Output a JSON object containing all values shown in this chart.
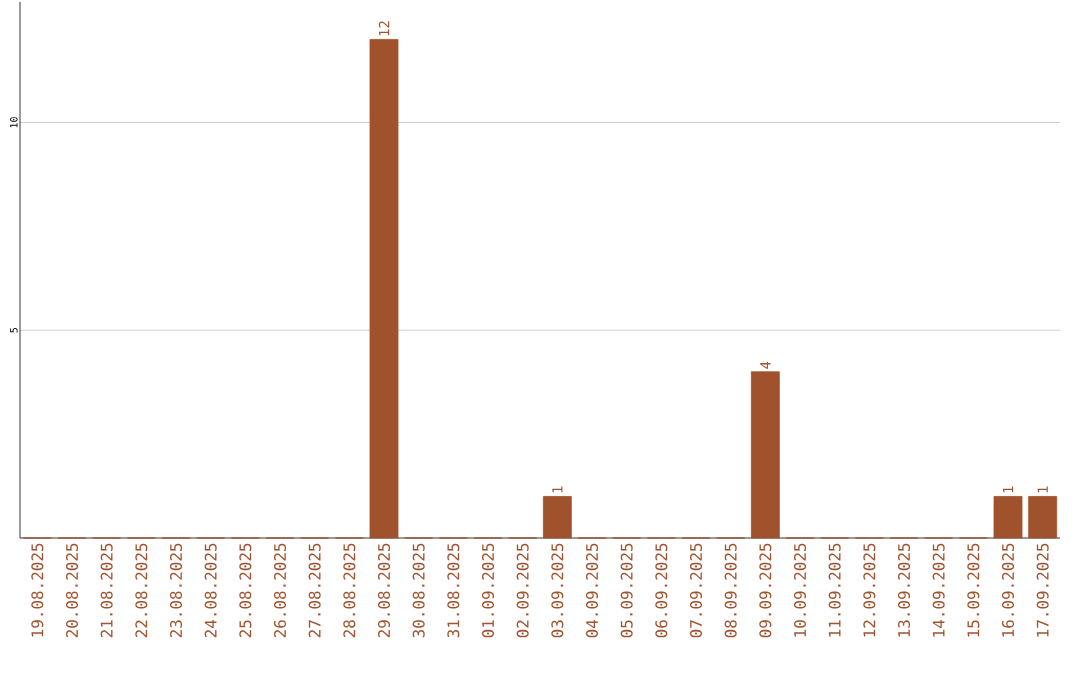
{
  "chart_data": {
    "type": "bar",
    "categories": [
      "19.08.2025",
      "20.08.2025",
      "21.08.2025",
      "22.08.2025",
      "23.08.2025",
      "24.08.2025",
      "25.08.2025",
      "26.08.2025",
      "27.08.2025",
      "28.08.2025",
      "29.08.2025",
      "30.08.2025",
      "31.08.2025",
      "01.09.2025",
      "02.09.2025",
      "03.09.2025",
      "04.09.2025",
      "05.09.2025",
      "06.09.2025",
      "07.09.2025",
      "08.09.2025",
      "09.09.2025",
      "10.09.2025",
      "11.09.2025",
      "12.09.2025",
      "13.09.2025",
      "14.09.2025",
      "15.09.2025",
      "16.09.2025",
      "17.09.2025"
    ],
    "values": [
      0,
      0,
      0,
      0,
      0,
      0,
      0,
      0,
      0,
      0,
      12,
      0,
      0,
      0,
      0,
      1,
      0,
      0,
      0,
      0,
      0,
      4,
      0,
      0,
      0,
      0,
      0,
      0,
      1,
      1
    ],
    "value_labels": [
      null,
      null,
      null,
      null,
      null,
      null,
      null,
      null,
      null,
      null,
      "12",
      null,
      null,
      null,
      null,
      "1",
      null,
      null,
      null,
      null,
      null,
      "4",
      null,
      null,
      null,
      null,
      null,
      null,
      "1",
      "1"
    ],
    "color": "#a0522d",
    "ylim": [
      0,
      12.9
    ],
    "yticks": [
      5,
      10
    ],
    "grid": "y"
  }
}
